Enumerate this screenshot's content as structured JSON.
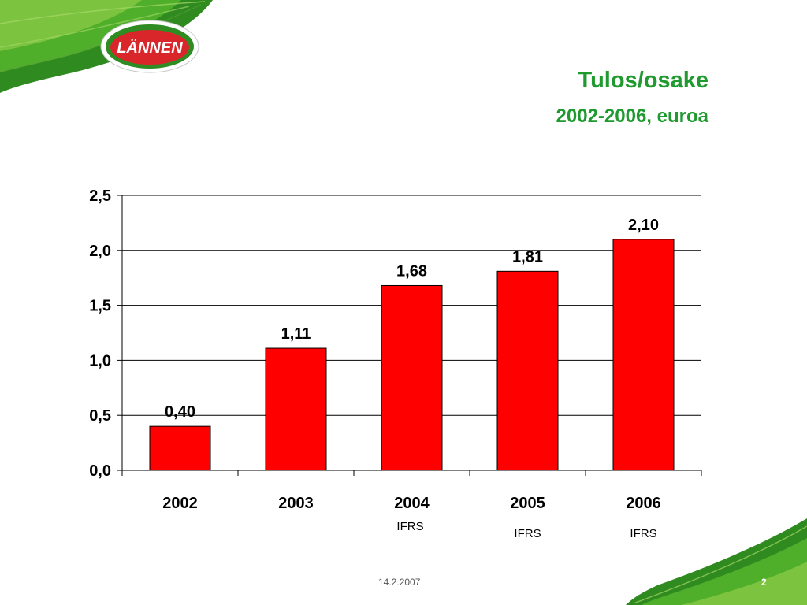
{
  "brand": {
    "logo_text": "LÄNNEN",
    "accent_color": "#1e9a2e",
    "logo_color": "#d9262a"
  },
  "slide": {
    "title": "Tulos/osake",
    "subtitle": "2002-2006, euroa",
    "footer_date": "14.2.2007",
    "page_number": "2"
  },
  "chart_data": {
    "type": "bar",
    "title": "Tulos/osake",
    "subtitle": "2002-2006, euroa",
    "categories": [
      "2002",
      "2003",
      "2004",
      "2005",
      "2006"
    ],
    "category_notes": [
      "",
      "",
      "IFRS",
      "IFRS",
      "IFRS"
    ],
    "values": [
      0.4,
      1.11,
      1.68,
      1.81,
      2.1
    ],
    "value_labels": [
      "0,40",
      "1,11",
      "1,68",
      "1,81",
      "2,10"
    ],
    "ylim": [
      0,
      2.5
    ],
    "yticks": [
      0.0,
      0.5,
      1.0,
      1.5,
      2.0,
      2.5
    ],
    "ytick_labels": [
      "0,0",
      "0,5",
      "1,0",
      "1,5",
      "2,0",
      "2,5"
    ],
    "bar_color": "#ff0000",
    "grid": true,
    "legend": "none",
    "xlabel": "",
    "ylabel": ""
  }
}
